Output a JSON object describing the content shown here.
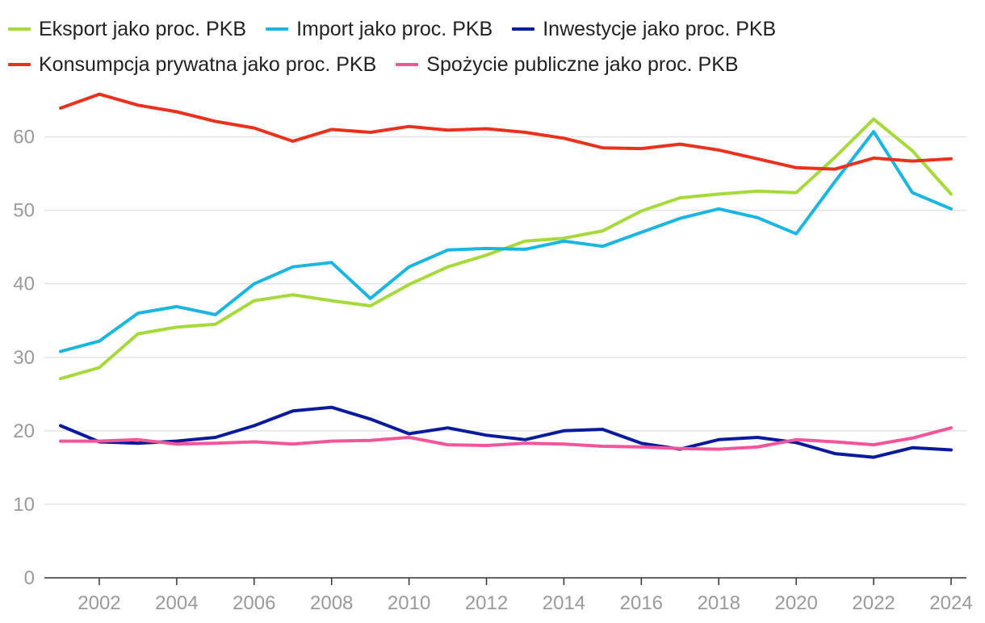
{
  "chart_data": {
    "type": "line",
    "title": "",
    "xlabel": "",
    "ylabel": "",
    "ylim": [
      0,
      65
    ],
    "y_ticks": [
      0,
      10,
      20,
      30,
      40,
      50,
      60
    ],
    "x_ticks": [
      2002,
      2004,
      2006,
      2008,
      2010,
      2012,
      2014,
      2016,
      2018,
      2020,
      2022,
      2024
    ],
    "grid": "horizontal",
    "legend_position": "top",
    "x": [
      2001,
      2002,
      2003,
      2004,
      2005,
      2006,
      2007,
      2008,
      2009,
      2010,
      2011,
      2012,
      2013,
      2014,
      2015,
      2016,
      2017,
      2018,
      2019,
      2020,
      2021,
      2022,
      2023,
      2024
    ],
    "series": [
      {
        "name": "Eksport jako proc. PKB",
        "color": "#a6d93b",
        "values": [
          27.1,
          28.6,
          33.2,
          34.1,
          34.5,
          37.7,
          38.5,
          37.7,
          37.0,
          39.9,
          42.3,
          43.9,
          45.8,
          46.2,
          47.2,
          49.9,
          51.7,
          52.2,
          52.6,
          52.4,
          57.2,
          62.4,
          58.1,
          52.2
        ]
      },
      {
        "name": "Import jako proc. PKB",
        "color": "#1ab5e0",
        "values": [
          30.8,
          32.2,
          36.0,
          36.9,
          35.8,
          40.0,
          42.3,
          42.9,
          38.0,
          42.3,
          44.6,
          44.8,
          44.7,
          45.8,
          45.1,
          47.0,
          48.9,
          50.2,
          49.0,
          46.8,
          53.9,
          60.7,
          52.4,
          50.2
        ]
      },
      {
        "name": "Inwestycje jako proc. PKB",
        "color": "#0a1a9c",
        "values": [
          20.7,
          18.5,
          18.3,
          18.6,
          19.1,
          20.7,
          22.7,
          23.2,
          21.6,
          19.6,
          20.4,
          19.4,
          18.8,
          20.0,
          20.2,
          18.3,
          17.5,
          18.8,
          19.1,
          18.4,
          16.9,
          16.4,
          17.7,
          17.4
        ]
      },
      {
        "name": "Konsumpcja prywatna jako proc. PKB",
        "color": "#e8321e",
        "values": [
          63.9,
          65.8,
          64.3,
          63.4,
          62.1,
          61.2,
          59.4,
          61.0,
          60.6,
          61.4,
          60.9,
          61.1,
          60.6,
          59.8,
          58.5,
          58.4,
          59.0,
          58.2,
          57.0,
          55.8,
          55.6,
          57.1,
          56.7,
          57.0
        ]
      },
      {
        "name": "Spożycie publiczne jako proc. PKB",
        "color": "#f2559a",
        "values": [
          18.6,
          18.6,
          18.8,
          18.2,
          18.3,
          18.5,
          18.2,
          18.6,
          18.7,
          19.1,
          18.1,
          18.0,
          18.3,
          18.2,
          17.9,
          17.8,
          17.6,
          17.5,
          17.8,
          18.8,
          18.5,
          18.1,
          19.0,
          20.4
        ]
      }
    ]
  }
}
